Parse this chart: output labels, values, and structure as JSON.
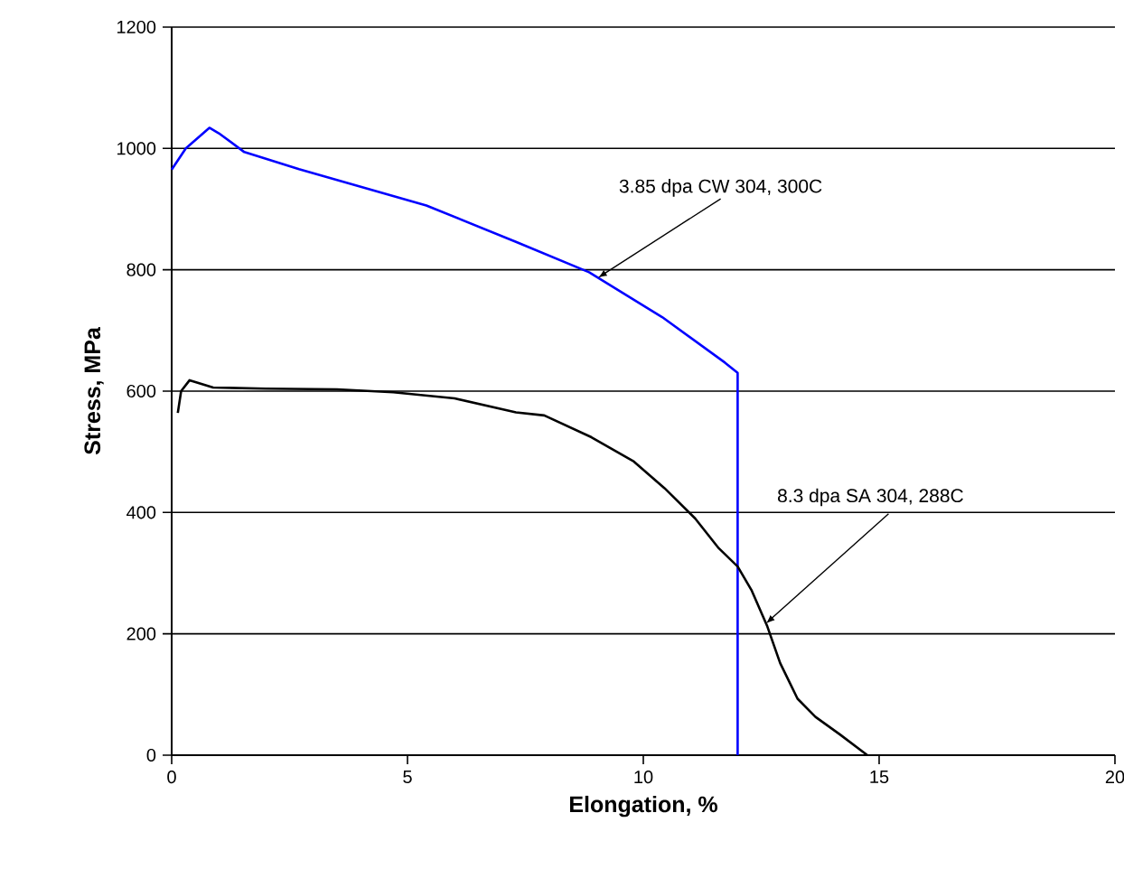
{
  "chart_data": {
    "type": "line",
    "xlabel": "Elongation, %",
    "ylabel": "Stress, MPa",
    "xlim": [
      0,
      20
    ],
    "ylim": [
      0,
      1200
    ],
    "xticks": [
      0,
      5,
      10,
      15,
      20
    ],
    "yticks": [
      0,
      200,
      400,
      600,
      800,
      1000,
      1200
    ],
    "grid": "y",
    "marker": "none",
    "line_style": "solid",
    "series": [
      {
        "color": "#0000ff",
        "x": [
          0,
          0.3,
          0.8,
          1.0,
          1.54,
          2.7,
          5.4,
          7.3,
          8.85,
          10.4,
          11.73,
          12.0,
          12.0
        ],
        "values": [
          965,
          1000,
          1034,
          1025,
          994,
          966,
          906,
          846,
          796,
          722,
          647,
          630,
          0
        ]
      },
      {
        "color": "#000000",
        "x": [
          0.13,
          0.2,
          0.38,
          0.88,
          2.0,
          3.5,
          4.7,
          6.0,
          7.3,
          7.9,
          8.9,
          9.8,
          10.45,
          11.1,
          11.6,
          12.0,
          12.3,
          12.63,
          12.9,
          13.27,
          13.65,
          14.17,
          14.68,
          14.75
        ],
        "values": [
          564,
          600,
          618,
          606,
          604,
          603,
          598,
          588,
          565,
          560,
          524,
          484,
          440,
          390,
          341,
          311,
          271,
          212,
          152,
          93,
          63,
          34,
          4,
          0
        ]
      }
    ],
    "annotations": [
      {
        "text": "3.85 dpa CW 304, 300C",
        "x": 9.04,
        "y": 787
      },
      {
        "text": "8.3 dpa SA 304, 288C",
        "x": 12.6,
        "y": 217
      }
    ]
  }
}
